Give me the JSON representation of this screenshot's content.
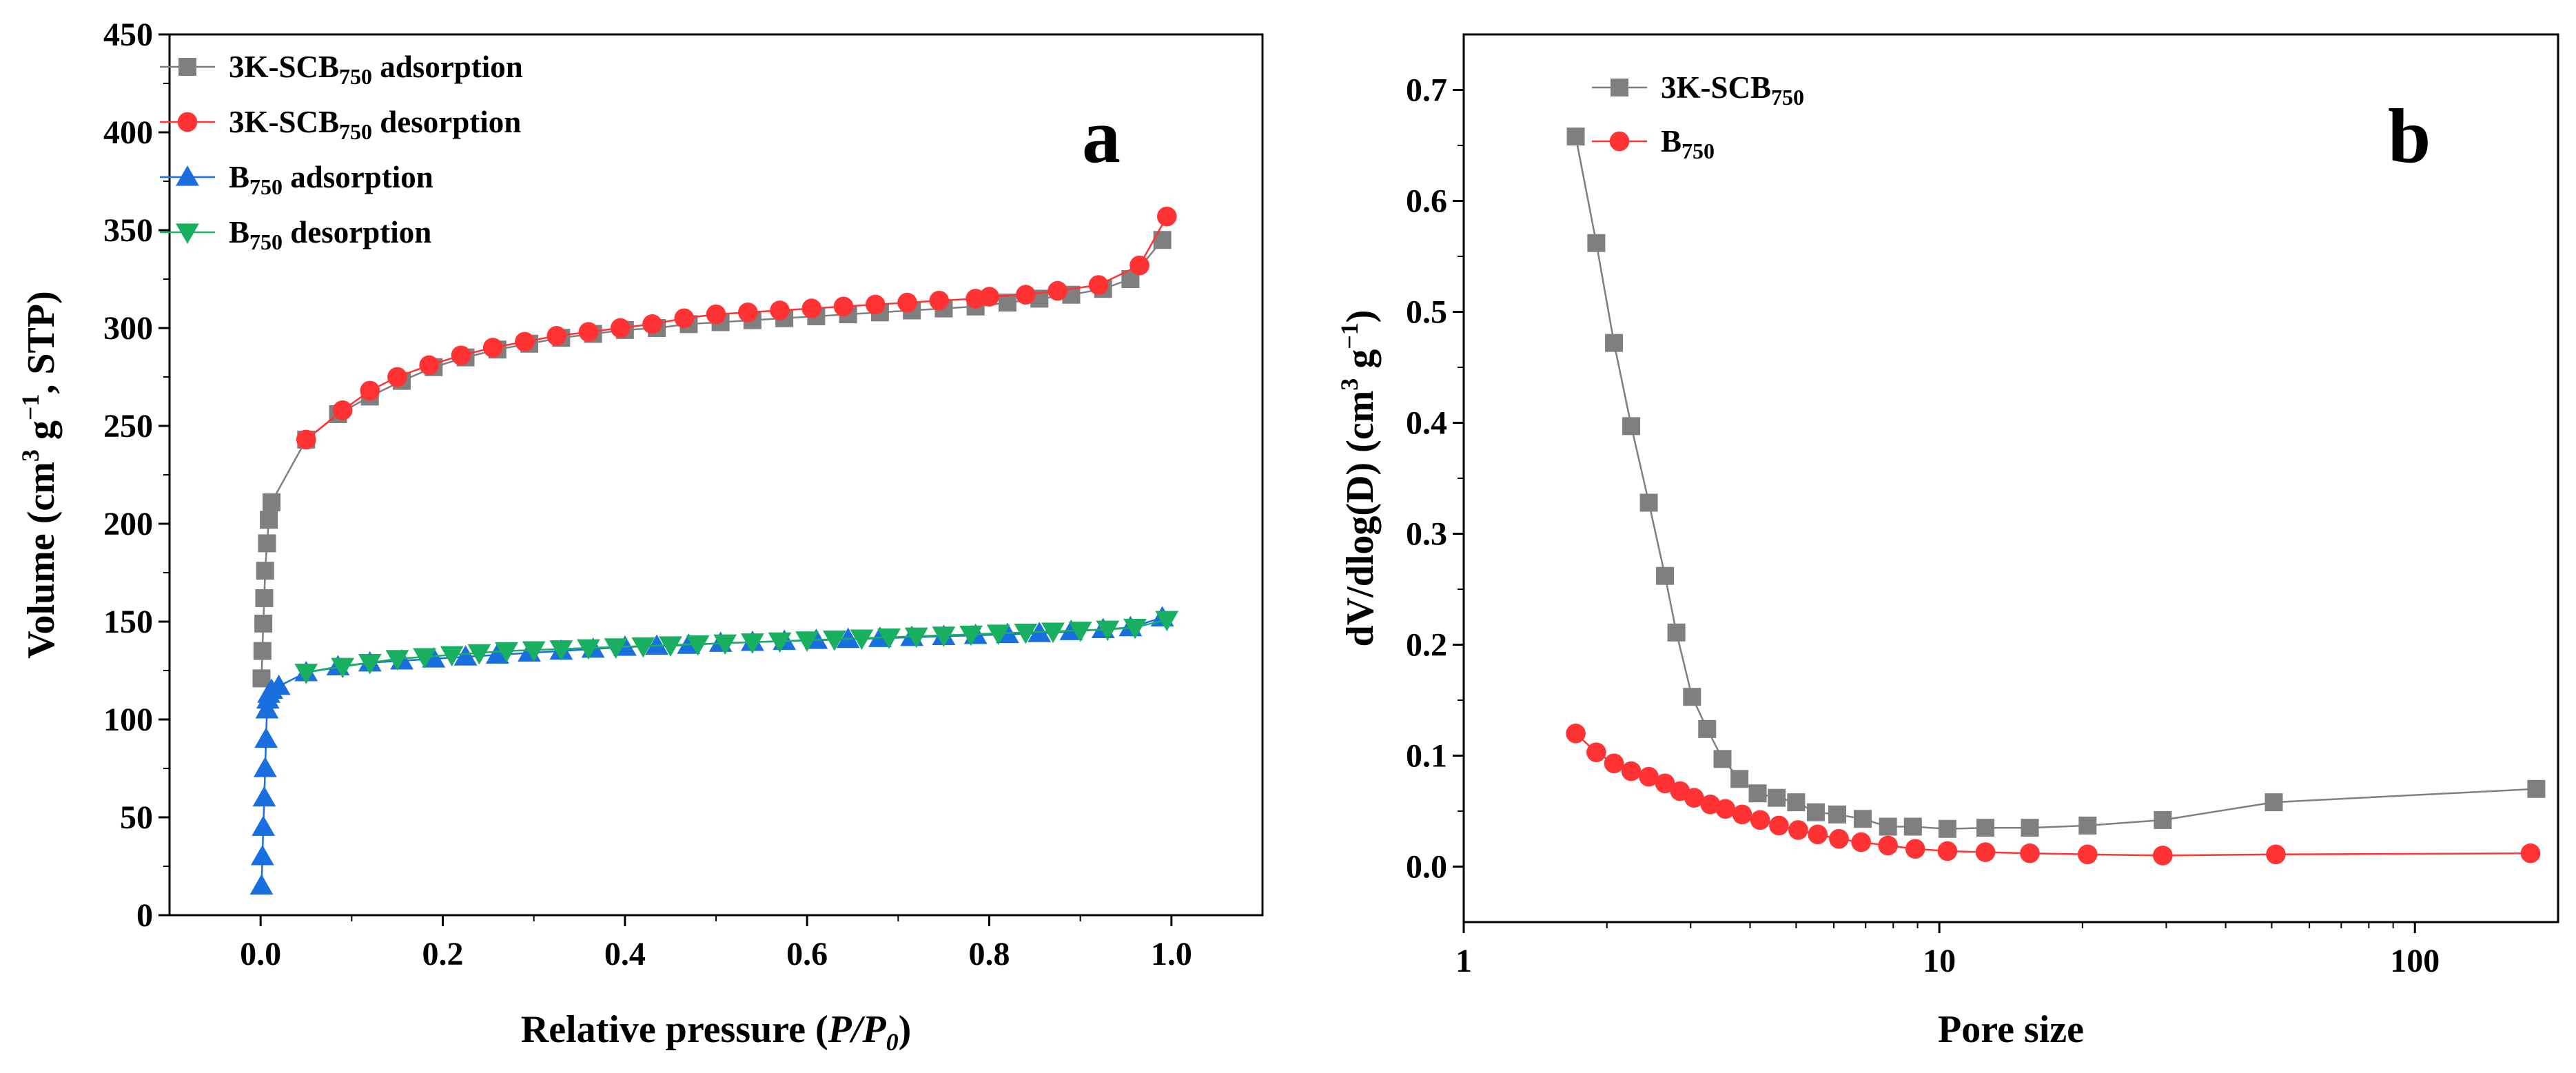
{
  "colors": {
    "adsorption_3k": "#7f7f7f",
    "desorption_3k": "#ff3333",
    "adsorption_b": "#1a6fe0",
    "desorption_b": "#18b060",
    "pore_3k": "#7f7f7f",
    "pore_b": "#ff3333"
  },
  "chart_data": [
    {
      "type": "scatter",
      "panel_label": "a",
      "xlabel": {
        "main": "Relative pressure (",
        "italic": "P/P",
        "italic_sub": "0",
        "close": ")"
      },
      "ylabel": {
        "pre": "Volume  (cm",
        "sup1": "3",
        "mid": " g",
        "sup2": "−1",
        "post": ", STP)"
      },
      "xlim": [
        -0.1,
        1.1
      ],
      "ylim": [
        0,
        450
      ],
      "xticks": [
        0.0,
        0.2,
        0.4,
        0.6,
        0.8,
        1.0
      ],
      "xtick_labels": [
        "0.0",
        "0.2",
        "0.4",
        "0.6",
        "0.8",
        "1.0"
      ],
      "yticks": [
        0,
        50,
        100,
        150,
        200,
        250,
        300,
        350,
        400,
        450
      ],
      "ytick_labels": [
        "0",
        "50",
        "100",
        "150",
        "200",
        "250",
        "300",
        "350",
        "400",
        "450"
      ],
      "grid": false,
      "legend_position": "top-left",
      "series": [
        {
          "legend": {
            "main": "3K-SCB",
            "sub": "750",
            "tail": " adsorption"
          },
          "marker": "square",
          "color_key": "adsorption_3k",
          "x": [
            0.001,
            0.002,
            0.003,
            0.004,
            0.005,
            0.007,
            0.009,
            0.012,
            0.05,
            0.085,
            0.12,
            0.155,
            0.19,
            0.225,
            0.26,
            0.295,
            0.33,
            0.365,
            0.4,
            0.435,
            0.47,
            0.505,
            0.54,
            0.575,
            0.61,
            0.645,
            0.68,
            0.715,
            0.75,
            0.785,
            0.82,
            0.855,
            0.89,
            0.925,
            0.955,
            0.99
          ],
          "y": [
            121,
            135,
            149,
            162,
            176,
            190,
            202,
            211,
            243,
            256,
            265,
            273,
            280,
            285,
            289,
            292,
            295,
            297,
            299,
            300,
            302,
            303,
            304,
            305,
            306,
            307,
            308,
            309,
            310,
            311,
            313,
            315,
            317,
            320,
            325,
            345
          ]
        },
        {
          "legend": {
            "main": "3K-SCB",
            "sub": "750",
            "tail": " desorption"
          },
          "marker": "circle",
          "color_key": "desorption_3k",
          "x": [
            0.995,
            0.965,
            0.92,
            0.875,
            0.84,
            0.8,
            0.785,
            0.745,
            0.71,
            0.675,
            0.64,
            0.605,
            0.57,
            0.535,
            0.5,
            0.465,
            0.43,
            0.395,
            0.36,
            0.325,
            0.29,
            0.255,
            0.22,
            0.185,
            0.15,
            0.12,
            0.09,
            0.05
          ],
          "y": [
            357,
            332,
            322,
            319,
            317,
            316,
            315,
            314,
            313,
            312,
            311,
            310,
            309,
            308,
            307,
            305,
            302,
            300,
            298,
            296,
            293,
            290,
            286,
            281,
            275,
            268,
            258,
            243
          ]
        },
        {
          "legend": {
            "main": "B",
            "sub": "750",
            "tail": " adsorption"
          },
          "marker": "triangle-up",
          "color_key": "adsorption_b",
          "x": [
            0.001,
            0.002,
            0.003,
            0.004,
            0.005,
            0.006,
            0.007,
            0.008,
            0.009,
            0.012,
            0.02,
            0.05,
            0.085,
            0.12,
            0.155,
            0.19,
            0.225,
            0.26,
            0.295,
            0.33,
            0.365,
            0.4,
            0.435,
            0.47,
            0.505,
            0.54,
            0.575,
            0.61,
            0.645,
            0.68,
            0.715,
            0.75,
            0.785,
            0.82,
            0.855,
            0.89,
            0.925,
            0.955,
            0.99
          ],
          "y": [
            15,
            30,
            45,
            60,
            75,
            90,
            105,
            110,
            113,
            115,
            117,
            124,
            127,
            129,
            130,
            131,
            132,
            133,
            134,
            135,
            136,
            137,
            137.5,
            138,
            139,
            139.5,
            140,
            140.5,
            141,
            141.5,
            142,
            142.5,
            143,
            143.5,
            144,
            145,
            146,
            147,
            152
          ]
        },
        {
          "legend": {
            "main": "B",
            "sub": "750",
            "tail": " desorption"
          },
          "marker": "triangle-down",
          "color_key": "desorption_b",
          "x": [
            0.995,
            0.96,
            0.93,
            0.9,
            0.87,
            0.84,
            0.81,
            0.78,
            0.75,
            0.72,
            0.69,
            0.66,
            0.63,
            0.6,
            0.57,
            0.54,
            0.51,
            0.48,
            0.45,
            0.42,
            0.39,
            0.36,
            0.33,
            0.3,
            0.27,
            0.24,
            0.21,
            0.18,
            0.15,
            0.12,
            0.09,
            0.05
          ],
          "y": [
            151,
            147,
            146,
            145.5,
            145,
            144.5,
            144,
            143.5,
            143,
            142.5,
            142,
            141.5,
            141,
            140.5,
            140,
            139.5,
            139,
            138.5,
            138,
            137.5,
            137,
            136.5,
            136,
            135.5,
            135,
            134,
            133,
            132,
            131,
            129,
            127,
            124
          ]
        }
      ]
    },
    {
      "type": "line",
      "panel_label": "b",
      "xscale": "log",
      "xlabel": {
        "text": "Pore size"
      },
      "ylabel": {
        "pre": "dV/dlog(D)  (cm",
        "sup1": "3",
        "mid": " g",
        "sup2": "−1",
        "post": ")"
      },
      "xlim": [
        1,
        200
      ],
      "ylim": [
        -0.05,
        0.75
      ],
      "xticks": [
        1,
        10,
        100
      ],
      "xtick_labels": [
        "1",
        "10",
        "100"
      ],
      "yticks": [
        0.0,
        0.1,
        0.2,
        0.3,
        0.4,
        0.5,
        0.6,
        0.7
      ],
      "ytick_labels": [
        "0.0",
        "0.1",
        "0.2",
        "0.3",
        "0.4",
        "0.5",
        "0.6",
        "0.7"
      ],
      "grid": false,
      "legend_position": "top-left",
      "series": [
        {
          "legend": {
            "main": "3K-SCB",
            "sub": "750",
            "tail": ""
          },
          "marker": "square",
          "color_key": "pore_3k",
          "x": [
            1.72,
            1.9,
            2.07,
            2.25,
            2.45,
            2.65,
            2.8,
            3.02,
            3.25,
            3.5,
            3.8,
            4.15,
            4.55,
            5.0,
            5.5,
            6.1,
            6.9,
            7.8,
            8.8,
            10.4,
            12.5,
            15.5,
            20.5,
            29.5,
            50.5,
            180
          ],
          "y": [
            0.658,
            0.562,
            0.472,
            0.397,
            0.328,
            0.262,
            0.211,
            0.153,
            0.124,
            0.097,
            0.079,
            0.066,
            0.062,
            0.058,
            0.049,
            0.047,
            0.043,
            0.036,
            0.036,
            0.034,
            0.035,
            0.035,
            0.037,
            0.042,
            0.058,
            0.07
          ]
        },
        {
          "legend": {
            "main": "B",
            "sub": "750",
            "tail": ""
          },
          "marker": "circle",
          "color_key": "pore_b",
          "x": [
            1.72,
            1.9,
            2.07,
            2.25,
            2.45,
            2.65,
            2.85,
            3.05,
            3.3,
            3.55,
            3.85,
            4.2,
            4.6,
            5.05,
            5.55,
            6.15,
            6.85,
            7.8,
            8.9,
            10.4,
            12.5,
            15.5,
            20.5,
            29.5,
            51,
            175
          ],
          "y": [
            0.12,
            0.103,
            0.093,
            0.086,
            0.081,
            0.075,
            0.068,
            0.062,
            0.056,
            0.052,
            0.047,
            0.042,
            0.037,
            0.033,
            0.029,
            0.025,
            0.022,
            0.019,
            0.016,
            0.014,
            0.013,
            0.012,
            0.011,
            0.01,
            0.011,
            0.012
          ]
        }
      ]
    }
  ]
}
